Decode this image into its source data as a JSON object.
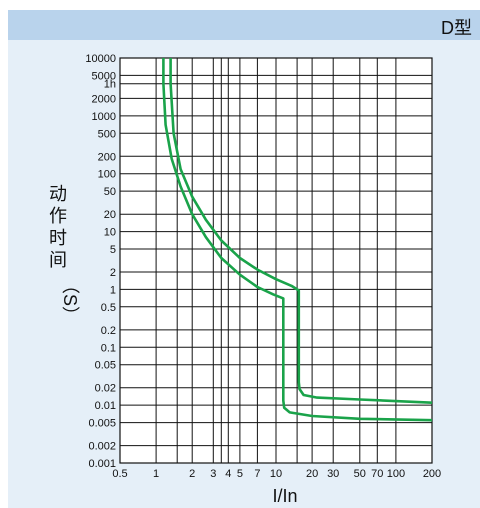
{
  "header": {
    "type_label": "D型"
  },
  "chart_data": {
    "type": "line",
    "title": "",
    "xlabel": "I/In",
    "ylabel_chars": [
      "动",
      "作",
      "时",
      "间"
    ],
    "ylabel_unit": "（S）",
    "x_scale": "log",
    "y_scale": "log",
    "xlim": [
      0.5,
      200
    ],
    "ylim": [
      0.001,
      10000
    ],
    "x_ticks": [
      {
        "v": 0.5,
        "label": "0.5"
      },
      {
        "v": 1,
        "label": "1"
      },
      {
        "v": 2,
        "label": "2"
      },
      {
        "v": 3,
        "label": "3"
      },
      {
        "v": 4,
        "label": "4"
      },
      {
        "v": 5,
        "label": "5"
      },
      {
        "v": 7,
        "label": "7"
      },
      {
        "v": 10,
        "label": "10"
      },
      {
        "v": 20,
        "label": "20"
      },
      {
        "v": 30,
        "label": "30"
      },
      {
        "v": 50,
        "label": "50"
      },
      {
        "v": 70,
        "label": "70"
      },
      {
        "v": 100,
        "label": "100"
      },
      {
        "v": 200,
        "label": "200"
      }
    ],
    "x_grid": [
      1,
      1.5,
      2,
      3,
      3.5,
      4,
      5,
      7,
      10,
      15,
      20,
      30,
      50,
      70,
      100,
      200
    ],
    "y_ticks": [
      {
        "v": 0.001,
        "label": "0.001"
      },
      {
        "v": 0.002,
        "label": "0.002"
      },
      {
        "v": 0.005,
        "label": "0.005"
      },
      {
        "v": 0.01,
        "label": "0.01"
      },
      {
        "v": 0.02,
        "label": "0.02"
      },
      {
        "v": 0.05,
        "label": "0.05"
      },
      {
        "v": 0.1,
        "label": "0.1"
      },
      {
        "v": 0.2,
        "label": "0.2"
      },
      {
        "v": 0.5,
        "label": "0.5"
      },
      {
        "v": 1,
        "label": "1"
      },
      {
        "v": 2,
        "label": "2"
      },
      {
        "v": 5,
        "label": "5"
      },
      {
        "v": 10,
        "label": "10"
      },
      {
        "v": 20,
        "label": "20"
      },
      {
        "v": 50,
        "label": "50"
      },
      {
        "v": 100,
        "label": "100"
      },
      {
        "v": 200,
        "label": "200"
      },
      {
        "v": 500,
        "label": "500"
      },
      {
        "v": 1000,
        "label": "1000"
      },
      {
        "v": 2000,
        "label": "2000"
      },
      {
        "v": 3600,
        "label": "1h"
      },
      {
        "v": 5000,
        "label": "5000"
      },
      {
        "v": 10000,
        "label": "10000"
      }
    ],
    "line_color": "#1aa34a",
    "series": [
      {
        "x": [
          1.15,
          1.15,
          1.2,
          1.35,
          1.6,
          2.0,
          2.6,
          3.5,
          5.0,
          7.0,
          9.5,
          11.5,
          11.5,
          11.7,
          13,
          20,
          50,
          200
        ],
        "y": [
          10000,
          3600,
          700,
          180,
          60,
          20,
          8,
          3.5,
          1.8,
          1.1,
          0.82,
          0.7,
          0.012,
          0.009,
          0.0075,
          0.0065,
          0.0058,
          0.0055
        ]
      },
      {
        "x": [
          1.32,
          1.32,
          1.4,
          1.6,
          2.0,
          2.6,
          3.5,
          5.0,
          7.0,
          10.0,
          13.5,
          15.5,
          15.5,
          15.7,
          17,
          22,
          50,
          200
        ],
        "y": [
          10000,
          3600,
          500,
          120,
          40,
          16,
          7,
          3.5,
          2.2,
          1.5,
          1.15,
          0.96,
          0.025,
          0.019,
          0.015,
          0.0135,
          0.0125,
          0.011
        ]
      }
    ]
  }
}
